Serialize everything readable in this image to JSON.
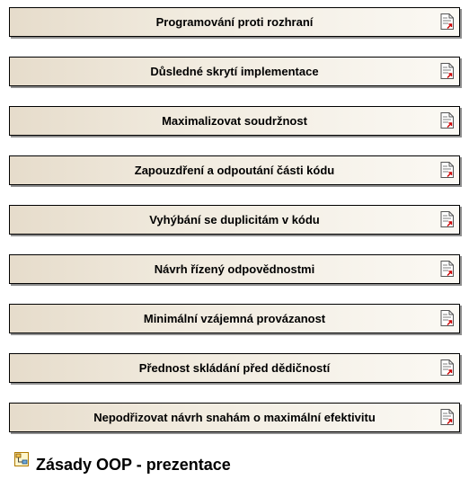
{
  "diagram": {
    "items": [
      {
        "label": "Programování proti rozhraní",
        "icon": "document-link-icon"
      },
      {
        "label": "Důsledné skrytí implementace",
        "icon": "document-link-icon"
      },
      {
        "label": "Maximalizovat soudržnost",
        "icon": "document-link-icon"
      },
      {
        "label": "Zapouzdření a odpoutání části kódu",
        "icon": "document-link-icon"
      },
      {
        "label": "Vyhýbání se duplicitám v kódu",
        "icon": "document-link-icon"
      },
      {
        "label": "Návrh řízený odpovědnostmi",
        "icon": "document-link-icon"
      },
      {
        "label": "Minimální vzájemná provázanost",
        "icon": "document-link-icon"
      },
      {
        "label": "Přednost skládání před dědičností",
        "icon": "document-link-icon"
      },
      {
        "label": "Nepodřizovat návrh snahám o maximální efektivitu",
        "icon": "document-link-icon"
      }
    ],
    "footer": {
      "title": "Zásady OOP - prezentace",
      "icon": "diagram-icon"
    },
    "colors": {
      "box_fill_start": "#e6dccb",
      "box_fill_end": "#fbf9f4",
      "box_border": "#000000",
      "box_shadow": "#8f8f8f",
      "link_arrow": "#cc0000"
    }
  }
}
